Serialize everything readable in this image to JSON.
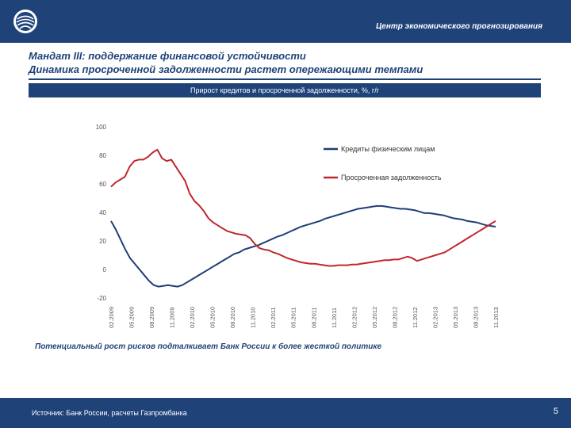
{
  "header": {
    "organization": "Центр экономического прогнозирования"
  },
  "slide": {
    "title_line1": "Мандат III: поддержание финансовой устойчивости",
    "title_line2": "Динамика просроченной задолженности растет опережающими темпами",
    "chart_heading": "Прирост кредитов и просроченной задолженности, %, г/г",
    "caption": "Потенциальный рост рисков подталкивает Банк России к более жесткой политике"
  },
  "footer": {
    "source": "Источник: Банк России, расчеты Газпромбанка",
    "page_number": "5"
  },
  "colors": {
    "brand": "#1f4379",
    "series_loans": "#1f3e77",
    "series_overdue": "#c0272d"
  },
  "chart_data": {
    "type": "line",
    "title": "Прирост кредитов и просроченной задолженности, %, г/г",
    "xlabel": "",
    "ylabel": "",
    "ylim": [
      -20,
      100
    ],
    "yticks": [
      -20,
      0,
      20,
      40,
      60,
      80,
      100
    ],
    "grid": false,
    "legend_position": "top-right",
    "x_tick_labels": [
      "02.2009",
      "05.2009",
      "08.2009",
      "11.2009",
      "02.2010",
      "05.2010",
      "08.2010",
      "11.2010",
      "02.2011",
      "05.2011",
      "08.2011",
      "11.2011",
      "02.2012",
      "05.2012",
      "08.2012",
      "11.2012",
      "02.2013",
      "05.2013",
      "08.2013",
      "11.2013"
    ],
    "series": [
      {
        "name": "Кредиты физическим лицам",
        "color": "#1f3e77",
        "values": [
          34,
          28,
          21,
          14,
          8,
          4,
          0,
          -4,
          -8,
          -11,
          -12,
          -11.5,
          -11,
          -11.5,
          -12,
          -11,
          -9,
          -7,
          -5,
          -3,
          -1,
          1,
          3,
          5,
          7,
          9,
          11,
          12,
          14,
          15,
          16,
          17,
          18.5,
          20,
          21.5,
          23,
          24,
          25.5,
          27,
          28.5,
          30,
          31,
          32,
          33,
          34,
          35.5,
          36.5,
          37.5,
          38.5,
          39.5,
          40.5,
          41.5,
          42.5,
          43,
          43.5,
          44,
          44.5,
          44.5,
          44,
          43.5,
          43,
          42.5,
          42.5,
          42,
          41.5,
          40.5,
          39.5,
          39.5,
          39,
          38.5,
          38,
          37,
          36,
          35.5,
          35,
          34,
          33.5,
          33,
          32,
          31,
          30.5,
          30
        ]
      },
      {
        "name": "Просроченная задолженность",
        "color": "#c0272d",
        "values": [
          58,
          61,
          63,
          65,
          72,
          76,
          77,
          77,
          79,
          82,
          84,
          78,
          76,
          77,
          72,
          67,
          62,
          53,
          48,
          45,
          41,
          36,
          33,
          31,
          29,
          27,
          26,
          25,
          24.5,
          24,
          22,
          18,
          15,
          14,
          13.5,
          12,
          11,
          9.5,
          8,
          7,
          6,
          5,
          4.5,
          4,
          4,
          3.5,
          3,
          2.5,
          2.5,
          3,
          3,
          3,
          3.5,
          3.5,
          4,
          4.5,
          5,
          5.5,
          6,
          6.5,
          6.5,
          7,
          7,
          8,
          9,
          8,
          6,
          7,
          8,
          9,
          10,
          11,
          12,
          14,
          16,
          18,
          20,
          22,
          24,
          26,
          28,
          30,
          32,
          34
        ]
      }
    ]
  }
}
